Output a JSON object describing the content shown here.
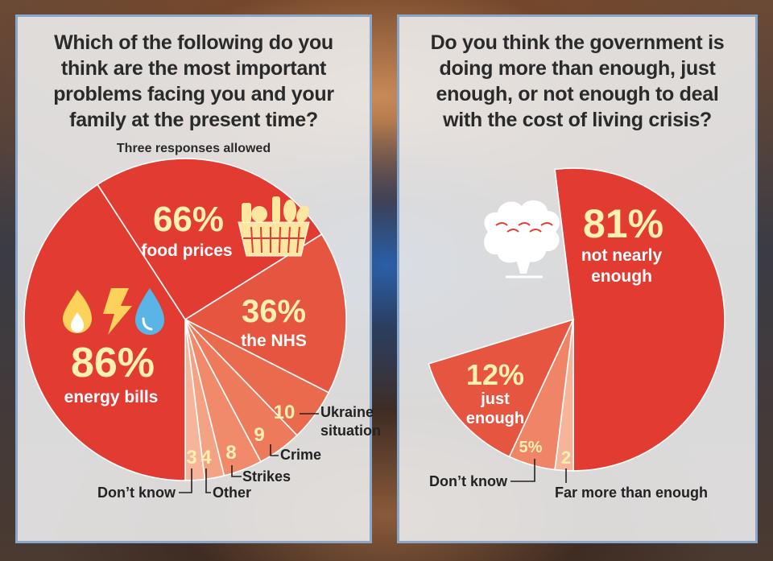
{
  "left_panel": {
    "title": "Which of the following do you think are the most important problems facing you and your family at the present time?",
    "subtitle": "Three responses allowed"
  },
  "right_panel": {
    "title": "Do you think the government is doing more than enough, just enough, or not enough to deal with the cost of living crisis?"
  },
  "colors": {
    "red": "#e23b32",
    "mid": "#ea6a4d",
    "light": "#f08a6a",
    "pale": "#f6b59a",
    "label_yellow": "#fdf0b0"
  },
  "chart_data": [
    {
      "type": "pie",
      "title": "Which of the following do you think are the most important problems facing you and your family at the present time?",
      "subtitle": "Three responses allowed",
      "slices": [
        {
          "label": "food prices",
          "value": 66,
          "display": "66%",
          "color": "#e23b32",
          "icon": "shopping-basket-icon"
        },
        {
          "label": "the NHS",
          "value": 36,
          "display": "36%",
          "color": "#e55540"
        },
        {
          "label": "Ukraine situation",
          "value": 10,
          "display": "10",
          "color": "#ea6a4d"
        },
        {
          "label": "Crime",
          "value": 9,
          "display": "9",
          "color": "#ed7a5a"
        },
        {
          "label": "Strikes",
          "value": 8,
          "display": "8",
          "color": "#f08a6a"
        },
        {
          "label": "Other",
          "value": 4,
          "display": "4",
          "color": "#f3a283"
        },
        {
          "label": "Don’t know",
          "value": 3,
          "display": "3",
          "color": "#f6b59a"
        },
        {
          "label": "energy bills",
          "value": 86,
          "display": "86%",
          "color": "#e23b32",
          "icons": [
            "flame-icon",
            "lightning-icon",
            "water-drop-icon"
          ]
        }
      ]
    },
    {
      "type": "pie",
      "title": "Do you think the government is doing more than enough, just enough, or not enough to deal with the cost of living crisis?",
      "slices": [
        {
          "label": "not nearly enough",
          "value": 81,
          "display": "81%",
          "color": "#e23b32",
          "icon": "tree-logo-icon"
        },
        {
          "label": "Far more than enough",
          "value": 2,
          "display": "2",
          "color": "#f6b59a"
        },
        {
          "label": "Don’t know",
          "value": 5,
          "display": "5%",
          "color": "#ef8466"
        },
        {
          "label": "just enough",
          "value": 12,
          "display": "12%",
          "color": "#e6553f"
        }
      ]
    }
  ]
}
